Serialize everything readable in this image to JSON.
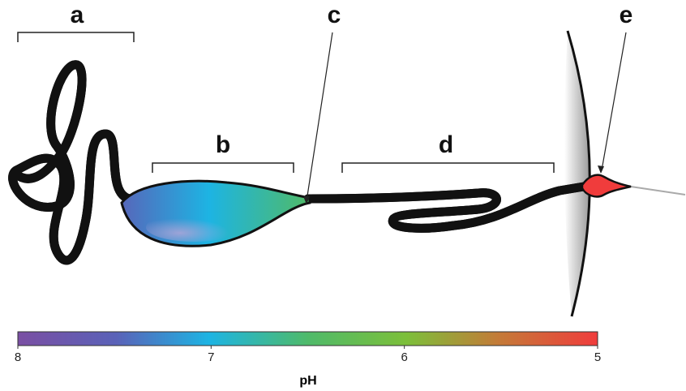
{
  "labels": [
    "a",
    "b",
    "c",
    "d",
    "e"
  ],
  "colorbar": {
    "label": "pH",
    "ticks": [
      8,
      7,
      6,
      5
    ]
  }
}
